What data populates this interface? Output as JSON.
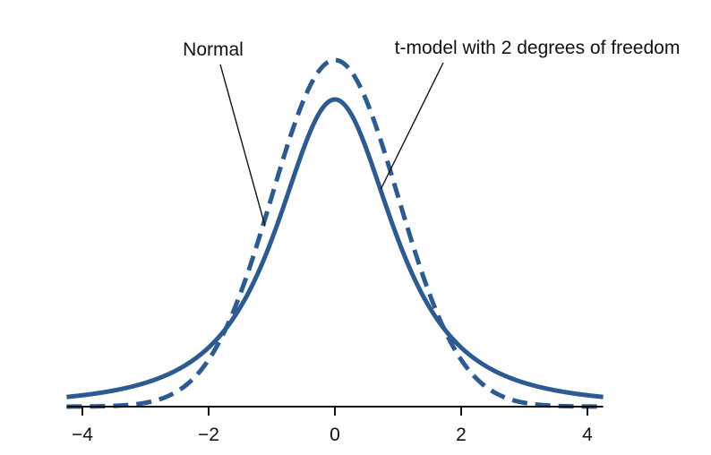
{
  "chart_data": {
    "type": "line",
    "title": "",
    "xlabel": "",
    "ylabel": "",
    "xlim": [
      -4.25,
      4.25
    ],
    "ylim": [
      0,
      0.43
    ],
    "xticks": [
      -4,
      -2,
      0,
      2,
      4
    ],
    "xtick_labels": [
      "−4",
      "−2",
      "0",
      "2",
      "4"
    ],
    "grid": false,
    "series": [
      {
        "name": "Normal",
        "style": "dashed",
        "distribution": "normal",
        "df": null,
        "color": "#2E5B8F"
      },
      {
        "name": "t-model with 2 degrees of freedom",
        "style": "solid",
        "distribution": "t",
        "df": 2,
        "color": "#2E5B8F"
      }
    ],
    "annotations": [
      {
        "text": "Normal",
        "target": "Normal"
      },
      {
        "text": "t-model with 2 degrees of freedom",
        "target": "t-model with 2 degrees of freedom"
      }
    ]
  }
}
